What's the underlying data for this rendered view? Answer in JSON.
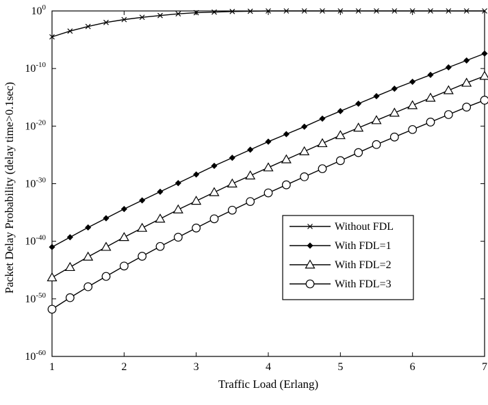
{
  "chart_data": {
    "type": "line",
    "title": "",
    "xlabel": "Traffic Load (Erlang)",
    "ylabel": "Packet Delay Probability (delay time>0.1sec)",
    "xlim": [
      1,
      7
    ],
    "ylim_log10": [
      -60,
      0
    ],
    "y_scale": "log",
    "grid": false,
    "legend_position": "center-right",
    "x_ticks": [
      "1",
      "2",
      "3",
      "4",
      "5",
      "6",
      "7"
    ],
    "y_ticks": [
      {
        "base": "10",
        "exp": "0"
      },
      {
        "base": "10",
        "exp": "-10"
      },
      {
        "base": "10",
        "exp": "-20"
      },
      {
        "base": "10",
        "exp": "-30"
      },
      {
        "base": "10",
        "exp": "-40"
      },
      {
        "base": "10",
        "exp": "-50"
      },
      {
        "base": "10",
        "exp": "-60"
      }
    ],
    "x": [
      1,
      1.25,
      1.5,
      1.75,
      2,
      2.25,
      2.5,
      2.75,
      3,
      3.25,
      3.5,
      3.75,
      4,
      4.25,
      4.5,
      4.75,
      5,
      5.25,
      5.5,
      5.75,
      6,
      6.25,
      6.5,
      6.75,
      7
    ],
    "series": [
      {
        "name": "Without FDL",
        "marker": "x",
        "log10_values": [
          -4.5,
          -3.5,
          -2.7,
          -2.0,
          -1.5,
          -1.1,
          -0.8,
          -0.5,
          -0.3,
          -0.2,
          -0.1,
          -0.05,
          0,
          0,
          0,
          0,
          0,
          0,
          0,
          0,
          0,
          0,
          0,
          0,
          0
        ]
      },
      {
        "name": "With FDL=1",
        "marker": "diamond",
        "log10_values": [
          -41.0,
          -39.3,
          -37.6,
          -36.0,
          -34.4,
          -32.9,
          -31.4,
          -29.9,
          -28.4,
          -26.9,
          -25.5,
          -24.1,
          -22.7,
          -21.4,
          -20.1,
          -18.7,
          -17.4,
          -16.1,
          -14.8,
          -13.5,
          -12.3,
          -11.1,
          -9.8,
          -8.6,
          -7.4
        ]
      },
      {
        "name": "With FDL=2",
        "marker": "triangle",
        "log10_values": [
          -46.3,
          -44.5,
          -42.7,
          -41.0,
          -39.3,
          -37.7,
          -36.1,
          -34.5,
          -33.0,
          -31.5,
          -30.0,
          -28.6,
          -27.2,
          -25.8,
          -24.4,
          -23.0,
          -21.6,
          -20.3,
          -19.0,
          -17.7,
          -16.4,
          -15.1,
          -13.8,
          -12.5,
          -11.3
        ]
      },
      {
        "name": "With FDL=3",
        "marker": "circle",
        "log10_values": [
          -51.8,
          -49.8,
          -47.9,
          -46.1,
          -44.3,
          -42.6,
          -40.9,
          -39.3,
          -37.7,
          -36.1,
          -34.6,
          -33.1,
          -31.6,
          -30.2,
          -28.8,
          -27.4,
          -26.0,
          -24.6,
          -23.2,
          -21.9,
          -20.6,
          -19.3,
          -18.0,
          -16.7,
          -15.5
        ]
      }
    ]
  }
}
